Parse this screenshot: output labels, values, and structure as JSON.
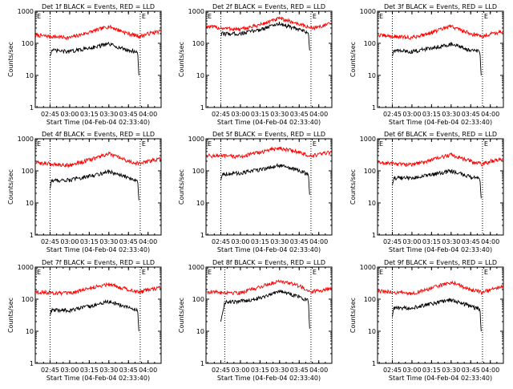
{
  "colors": {
    "background": "#ffffff",
    "axes": "#000000",
    "events": "#000000",
    "lld": "#ff0000"
  },
  "chart_data": [
    {
      "type": "line",
      "title": "Det 1f BLACK = Events, RED = LLD",
      "xlabel": "Start Time (04-Feb-04 02:33:40)",
      "ylabel": "Counts/sec",
      "yscale": "log",
      "ylim": [
        1,
        1000
      ],
      "xlim": [
        "02:33:40",
        "04:10:00"
      ],
      "x_ticks": [
        "02:45",
        "03:00",
        "03:15",
        "03:30",
        "03:45",
        "04:00"
      ],
      "y_ticks": [
        "1",
        "10",
        "100",
        "1000"
      ],
      "markers": [
        {
          "time": "02:45:00"
        },
        {
          "time": "03:54:00",
          "label": "E"
        }
      ],
      "corner_label": "E",
      "series": [
        {
          "name": "LLD",
          "color": "#ff0000",
          "x": [
            "02:33:40",
            "02:45",
            "03:00",
            "03:15",
            "03:30",
            "03:45",
            "03:54",
            "04:00",
            "04:10"
          ],
          "y": [
            180,
            165,
            150,
            220,
            340,
            200,
            165,
            200,
            240
          ]
        },
        {
          "name": "Events",
          "color": "#000000",
          "x": [
            "02:45",
            "02:46",
            "03:00",
            "03:15",
            "03:30",
            "03:45",
            "03:52",
            "03:53"
          ],
          "y": [
            40,
            60,
            55,
            72,
            95,
            60,
            55,
            10
          ]
        }
      ]
    },
    {
      "type": "line",
      "title": "Det 2f BLACK = Events, RED = LLD",
      "xlabel": "Start Time (04-Feb-04 02:33:40)",
      "ylabel": "Counts/sec",
      "yscale": "log",
      "ylim": [
        1,
        1000
      ],
      "xlim": [
        "02:33:40",
        "04:10:00"
      ],
      "x_ticks": [
        "02:45",
        "03:00",
        "03:15",
        "03:30",
        "03:45",
        "04:00"
      ],
      "y_ticks": [
        "1",
        "10",
        "100",
        "1000"
      ],
      "markers": [
        {
          "time": "02:45:00"
        },
        {
          "time": "03:54:00",
          "label": "E"
        }
      ],
      "corner_label": "E",
      "series": [
        {
          "name": "LLD",
          "color": "#ff0000",
          "x": [
            "02:33:40",
            "02:45",
            "03:00",
            "03:15",
            "03:30",
            "03:45",
            "03:54",
            "04:00",
            "04:10"
          ],
          "y": [
            340,
            300,
            270,
            380,
            600,
            400,
            300,
            330,
            420
          ]
        },
        {
          "name": "Events",
          "color": "#000000",
          "x": [
            "02:45",
            "02:46",
            "03:00",
            "03:15",
            "03:30",
            "03:45",
            "03:52",
            "03:53"
          ],
          "y": [
            180,
            200,
            200,
            270,
            420,
            260,
            220,
            60
          ]
        }
      ]
    },
    {
      "type": "line",
      "title": "Det 3f BLACK = Events, RED = LLD",
      "xlabel": "Start Time (04-Feb-04 02:33:40)",
      "ylabel": "Counts/sec",
      "yscale": "log",
      "ylim": [
        1,
        1000
      ],
      "xlim": [
        "02:33:40",
        "04:10:00"
      ],
      "x_ticks": [
        "02:45",
        "03:00",
        "03:15",
        "03:30",
        "03:45",
        "04:00"
      ],
      "y_ticks": [
        "1",
        "10",
        "100",
        "1000"
      ],
      "markers": [
        {
          "time": "02:45:00"
        },
        {
          "time": "03:54:00",
          "label": "E"
        }
      ],
      "corner_label": "E",
      "series": [
        {
          "name": "LLD",
          "color": "#ff0000",
          "x": [
            "02:33:40",
            "02:45",
            "03:00",
            "03:15",
            "03:30",
            "03:45",
            "03:54",
            "04:00",
            "04:10"
          ],
          "y": [
            180,
            165,
            150,
            220,
            340,
            200,
            165,
            200,
            240
          ]
        },
        {
          "name": "Events",
          "color": "#000000",
          "x": [
            "02:45",
            "02:46",
            "03:00",
            "03:15",
            "03:30",
            "03:45",
            "03:52",
            "03:53"
          ],
          "y": [
            40,
            60,
            55,
            72,
            95,
            60,
            55,
            10
          ]
        }
      ]
    },
    {
      "type": "line",
      "title": "Det 4f BLACK = Events, RED = LLD",
      "xlabel": "Start Time (04-Feb-04 02:33:40)",
      "ylabel": "Counts/sec",
      "yscale": "log",
      "ylim": [
        1,
        1000
      ],
      "xlim": [
        "02:33:40",
        "04:10:00"
      ],
      "x_ticks": [
        "02:45",
        "03:00",
        "03:15",
        "03:30",
        "03:45",
        "04:00"
      ],
      "y_ticks": [
        "1",
        "10",
        "100",
        "1000"
      ],
      "markers": [
        {
          "time": "02:45:00"
        },
        {
          "time": "03:54:00",
          "label": "E"
        }
      ],
      "corner_label": "E",
      "series": [
        {
          "name": "LLD",
          "color": "#ff0000",
          "x": [
            "02:33:40",
            "02:45",
            "03:00",
            "03:15",
            "03:30",
            "03:45",
            "03:54",
            "04:00",
            "04:10"
          ],
          "y": [
            180,
            165,
            150,
            220,
            340,
            200,
            165,
            200,
            240
          ]
        },
        {
          "name": "Events",
          "color": "#000000",
          "x": [
            "02:45",
            "02:46",
            "03:00",
            "03:15",
            "03:30",
            "03:45",
            "03:52",
            "03:53"
          ],
          "y": [
            28,
            50,
            52,
            68,
            95,
            60,
            50,
            12
          ]
        }
      ]
    },
    {
      "type": "line",
      "title": "Det 5f BLACK = Events, RED = LLD",
      "xlabel": "Start Time (04-Feb-04 02:33:40)",
      "ylabel": "Counts/sec",
      "yscale": "log",
      "ylim": [
        1,
        1000
      ],
      "xlim": [
        "02:33:40",
        "04:10:00"
      ],
      "x_ticks": [
        "02:45",
        "03:00",
        "03:15",
        "03:30",
        "03:45",
        "04:00"
      ],
      "y_ticks": [
        "1",
        "10",
        "100",
        "1000"
      ],
      "markers": [
        {
          "time": "02:45:00"
        },
        {
          "time": "03:54:00",
          "label": "E"
        }
      ],
      "corner_label": "E",
      "series": [
        {
          "name": "LLD",
          "color": "#ff0000",
          "x": [
            "02:33:40",
            "02:45",
            "03:00",
            "03:15",
            "03:30",
            "03:45",
            "03:54",
            "04:00",
            "04:10"
          ],
          "y": [
            300,
            290,
            280,
            380,
            520,
            380,
            280,
            330,
            380
          ]
        },
        {
          "name": "Events",
          "color": "#000000",
          "x": [
            "02:45",
            "02:46",
            "03:00",
            "03:15",
            "03:30",
            "03:45",
            "03:52",
            "03:53"
          ],
          "y": [
            50,
            80,
            85,
            110,
            150,
            100,
            80,
            18
          ]
        }
      ]
    },
    {
      "type": "line",
      "title": "Det 6f BLACK = Events, RED = LLD",
      "xlabel": "Start Time (04-Feb-04 02:33:40)",
      "ylabel": "Counts/sec",
      "yscale": "log",
      "ylim": [
        1,
        1000
      ],
      "xlim": [
        "02:33:40",
        "04:10:00"
      ],
      "x_ticks": [
        "02:45",
        "03:00",
        "03:15",
        "03:30",
        "03:45",
        "04:00"
      ],
      "y_ticks": [
        "1",
        "10",
        "100",
        "1000"
      ],
      "markers": [
        {
          "time": "02:45:00"
        },
        {
          "time": "03:54:00",
          "label": "E"
        }
      ],
      "corner_label": "E",
      "series": [
        {
          "name": "LLD",
          "color": "#ff0000",
          "x": [
            "02:33:40",
            "02:45",
            "03:00",
            "03:15",
            "03:30",
            "03:45",
            "03:54",
            "04:00",
            "04:10"
          ],
          "y": [
            180,
            170,
            155,
            220,
            320,
            200,
            160,
            200,
            240
          ]
        },
        {
          "name": "Events",
          "color": "#000000",
          "x": [
            "02:45",
            "02:46",
            "03:00",
            "03:15",
            "03:30",
            "03:45",
            "03:52",
            "03:53"
          ],
          "y": [
            35,
            60,
            60,
            75,
            100,
            65,
            55,
            14
          ]
        }
      ]
    },
    {
      "type": "line",
      "title": "Det 7f BLACK = Events, RED = LLD",
      "xlabel": "Start Time (04-Feb-04 02:33:40)",
      "ylabel": "Counts/sec",
      "yscale": "log",
      "ylim": [
        1,
        1000
      ],
      "xlim": [
        "02:33:40",
        "04:10:00"
      ],
      "x_ticks": [
        "02:45",
        "03:00",
        "03:15",
        "03:30",
        "03:45",
        "04:00"
      ],
      "y_ticks": [
        "1",
        "10",
        "100",
        "1000"
      ],
      "markers": [
        {
          "time": "02:45:00"
        },
        {
          "time": "03:54:00",
          "label": "E"
        }
      ],
      "corner_label": "E",
      "series": [
        {
          "name": "LLD",
          "color": "#ff0000",
          "x": [
            "02:33:40",
            "02:45",
            "03:00",
            "03:15",
            "03:30",
            "03:45",
            "03:54",
            "04:00",
            "04:10"
          ],
          "y": [
            170,
            160,
            150,
            220,
            300,
            200,
            165,
            200,
            230
          ]
        },
        {
          "name": "Events",
          "color": "#000000",
          "x": [
            "02:45",
            "02:46",
            "03:00",
            "03:15",
            "03:30",
            "03:45",
            "03:52",
            "03:53"
          ],
          "y": [
            30,
            45,
            45,
            60,
            85,
            55,
            45,
            10
          ]
        }
      ]
    },
    {
      "type": "line",
      "title": "Det 8f BLACK = Events, RED = LLD",
      "xlabel": "Start Time (04-Feb-04 02:33:40)",
      "ylabel": "Counts/sec",
      "yscale": "log",
      "ylim": [
        1,
        1000
      ],
      "xlim": [
        "02:33:40",
        "04:10:00"
      ],
      "x_ticks": [
        "02:45",
        "03:00",
        "03:15",
        "03:30",
        "03:45",
        "04:00"
      ],
      "y_ticks": [
        "1",
        "10",
        "100",
        "1000"
      ],
      "markers": [
        {
          "time": "02:48:00"
        },
        {
          "time": "03:54:00",
          "label": "E"
        }
      ],
      "corner_label": "E",
      "series": [
        {
          "name": "LLD",
          "color": "#ff0000",
          "x": [
            "02:33:40",
            "02:45",
            "03:00",
            "03:15",
            "03:30",
            "03:45",
            "03:54",
            "04:00",
            "04:10"
          ],
          "y": [
            170,
            165,
            160,
            240,
            380,
            260,
            175,
            180,
            230
          ]
        },
        {
          "name": "Events",
          "color": "#000000",
          "x": [
            "02:45",
            "02:48",
            "03:00",
            "03:15",
            "03:30",
            "03:45",
            "03:52",
            "03:53"
          ],
          "y": [
            20,
            80,
            85,
            110,
            180,
            120,
            90,
            12
          ]
        }
      ]
    },
    {
      "type": "line",
      "title": "Det 9f BLACK = Events, RED = LLD",
      "xlabel": "Start Time (04-Feb-04 02:33:40)",
      "ylabel": "Counts/sec",
      "yscale": "log",
      "ylim": [
        1,
        1000
      ],
      "xlim": [
        "02:33:40",
        "04:10:00"
      ],
      "x_ticks": [
        "02:45",
        "03:00",
        "03:15",
        "03:30",
        "03:45",
        "04:00"
      ],
      "y_ticks": [
        "1",
        "10",
        "100",
        "1000"
      ],
      "markers": [
        {
          "time": "02:45:00"
        },
        {
          "time": "03:54:00",
          "label": "E"
        }
      ],
      "corner_label": "E",
      "series": [
        {
          "name": "LLD",
          "color": "#ff0000",
          "x": [
            "02:33:40",
            "02:45",
            "03:00",
            "03:15",
            "03:30",
            "03:45",
            "03:54",
            "04:00",
            "04:10"
          ],
          "y": [
            180,
            165,
            150,
            220,
            340,
            200,
            165,
            200,
            240
          ]
        },
        {
          "name": "Events",
          "color": "#000000",
          "x": [
            "02:45",
            "02:46",
            "03:00",
            "03:15",
            "03:30",
            "03:45",
            "03:52",
            "03:53"
          ],
          "y": [
            28,
            52,
            55,
            72,
            95,
            60,
            50,
            10
          ]
        }
      ]
    }
  ]
}
